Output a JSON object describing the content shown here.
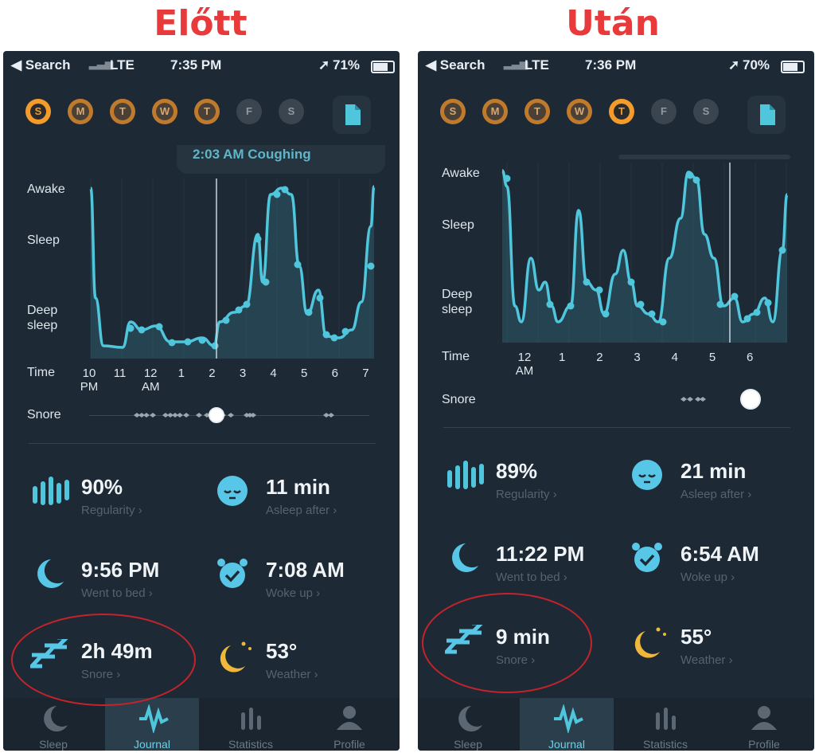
{
  "headings": {
    "before": "Előtt",
    "after": "Után"
  },
  "status": {
    "left": "◀ Search",
    "carrier": "LTE"
  },
  "before": {
    "time": "7:35 PM",
    "battery": "71%",
    "days": [
      {
        "letter": "S",
        "state": "active"
      },
      {
        "letter": "M",
        "state": "done"
      },
      {
        "letter": "T",
        "state": "done"
      },
      {
        "letter": "W",
        "state": "done"
      },
      {
        "letter": "T",
        "state": "done"
      },
      {
        "letter": "F",
        "state": "empty"
      },
      {
        "letter": "S",
        "state": "empty"
      }
    ],
    "chart_top_label": "2:03 AM Coughing",
    "ylabels": {
      "awake": "Awake",
      "sleep": "Sleep",
      "deep1": "Deep",
      "deep2": "sleep"
    },
    "time_label": "Time",
    "x_ticks": [
      "10\nPM",
      "11",
      "12\nAM",
      "1",
      "2",
      "3",
      "4",
      "5",
      "6",
      "7"
    ],
    "snore_label": "Snore",
    "stats": {
      "regularity_value": "90%",
      "regularity_label": "Regularity ›",
      "asleep_value": "11 min",
      "asleep_label": "Asleep after ›",
      "bed_value": "9:56 PM",
      "bed_label": "Went to bed ›",
      "woke_value": "7:08 AM",
      "woke_label": "Woke up ›",
      "snore_value": "2h 49m",
      "snore_label": "Snore ›",
      "weather_value": "53°",
      "weather_label": "Weather ›"
    }
  },
  "after": {
    "time": "7:36 PM",
    "battery": "70%",
    "days": [
      {
        "letter": "S",
        "state": "done"
      },
      {
        "letter": "M",
        "state": "done"
      },
      {
        "letter": "T",
        "state": "done"
      },
      {
        "letter": "W",
        "state": "done"
      },
      {
        "letter": "T",
        "state": "active"
      },
      {
        "letter": "F",
        "state": "empty"
      },
      {
        "letter": "S",
        "state": "empty"
      }
    ],
    "ylabels": {
      "awake": "Awake",
      "sleep": "Sleep",
      "deep1": "Deep",
      "deep2": "sleep"
    },
    "time_label": "Time",
    "x_ticks": [
      "12\nAM",
      "1",
      "2",
      "3",
      "4",
      "5",
      "6"
    ],
    "snore_label": "Snore",
    "stats": {
      "regularity_value": "89%",
      "regularity_label": "Regularity ›",
      "asleep_value": "21 min",
      "asleep_label": "Asleep after ›",
      "bed_value": "11:22 PM",
      "bed_label": "Went to bed ›",
      "woke_value": "6:54 AM",
      "woke_label": "Woke up ›",
      "snore_value": "9 min",
      "snore_label": "Snore ›",
      "weather_value": "55°",
      "weather_label": "Weather ›"
    }
  },
  "tabs": [
    "Sleep",
    "Journal",
    "Statistics",
    "Profile"
  ],
  "colors": {
    "accent": "#4fc6dc",
    "annotation": "#e83a3a",
    "background": "#1d2a36"
  }
}
